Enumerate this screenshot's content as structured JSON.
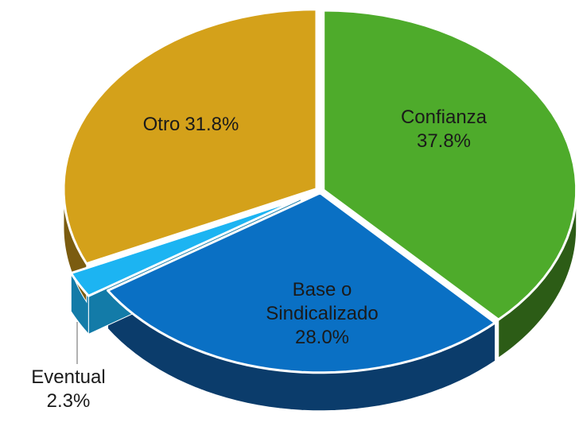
{
  "chart_data": {
    "type": "pie3d",
    "categories": [
      "Confianza",
      "Base o Sindicalizado",
      "Eventual",
      "Otro"
    ],
    "values": [
      37.8,
      28.0,
      2.3,
      31.8
    ],
    "value_labels": [
      "37.8%",
      "28.0%",
      "2.3%",
      "31.8%"
    ],
    "colors": [
      "#4eab2b",
      "#0a70c4",
      "#1cb4f2",
      "#d4a11a"
    ],
    "side_colors": [
      "#2c5c16",
      "#0b3c6b",
      "#137ba8",
      "#7b5c10"
    ]
  }
}
